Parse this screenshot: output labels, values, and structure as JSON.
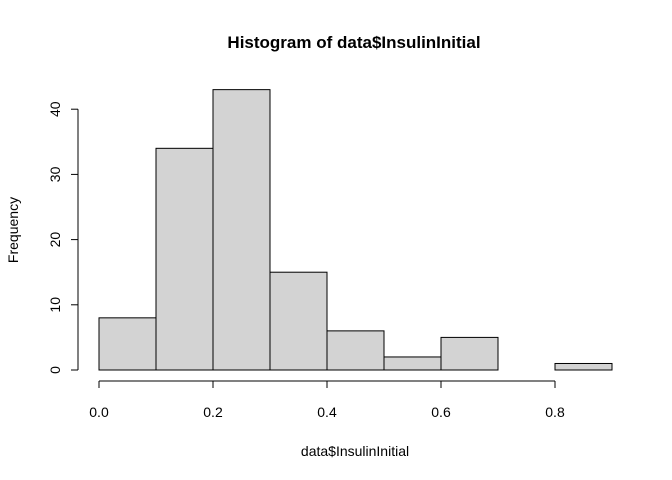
{
  "chart_data": {
    "type": "bar",
    "title": "Histogram of data$InsulinInitial",
    "xlabel": "data$InsulinInitial",
    "ylabel": "Frequency",
    "bins": [
      {
        "start": 0.0,
        "end": 0.1,
        "count": 8
      },
      {
        "start": 0.1,
        "end": 0.2,
        "count": 34
      },
      {
        "start": 0.2,
        "end": 0.3,
        "count": 43
      },
      {
        "start": 0.3,
        "end": 0.4,
        "count": 15
      },
      {
        "start": 0.4,
        "end": 0.5,
        "count": 6
      },
      {
        "start": 0.5,
        "end": 0.6,
        "count": 2
      },
      {
        "start": 0.6,
        "end": 0.7,
        "count": 5
      },
      {
        "start": 0.7,
        "end": 0.8,
        "count": 0
      },
      {
        "start": 0.8,
        "end": 0.9,
        "count": 1
      }
    ],
    "xlim": [
      0,
      0.9
    ],
    "ylim": [
      0,
      43
    ],
    "x_ticks": [
      "0.0",
      "0.2",
      "0.4",
      "0.6",
      "0.8"
    ],
    "y_ticks": [
      "0",
      "10",
      "20",
      "30",
      "40"
    ],
    "colors": {
      "bar_fill": "#d3d3d3",
      "bar_stroke": "#000000"
    },
    "grid": false,
    "legend": "none"
  }
}
